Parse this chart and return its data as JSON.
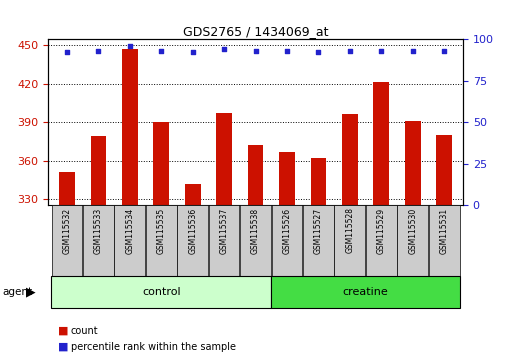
{
  "title": "GDS2765 / 1434069_at",
  "samples": [
    "GSM115532",
    "GSM115533",
    "GSM115534",
    "GSM115535",
    "GSM115536",
    "GSM115537",
    "GSM115538",
    "GSM115526",
    "GSM115527",
    "GSM115528",
    "GSM115529",
    "GSM115530",
    "GSM115531"
  ],
  "counts": [
    351,
    379,
    447,
    390,
    342,
    397,
    372,
    367,
    362,
    396,
    421,
    391,
    380
  ],
  "percentiles": [
    92,
    93,
    96,
    93,
    92,
    94,
    93,
    93,
    92,
    93,
    93,
    93,
    93
  ],
  "ylim_left": [
    325,
    455
  ],
  "ylim_right": [
    0,
    100
  ],
  "yticks_left": [
    330,
    360,
    390,
    420,
    450
  ],
  "yticks_right": [
    0,
    25,
    50,
    75,
    100
  ],
  "n_control": 7,
  "n_creatine": 6,
  "bar_color": "#cc1100",
  "dot_color": "#2222cc",
  "control_bg": "#ccffcc",
  "creatine_bg": "#44dd44",
  "sample_box_bg": "#cccccc",
  "tick_color_left": "#cc1100",
  "tick_color_right": "#2222cc",
  "legend_count": "count",
  "legend_percentile": "percentile rank within the sample"
}
